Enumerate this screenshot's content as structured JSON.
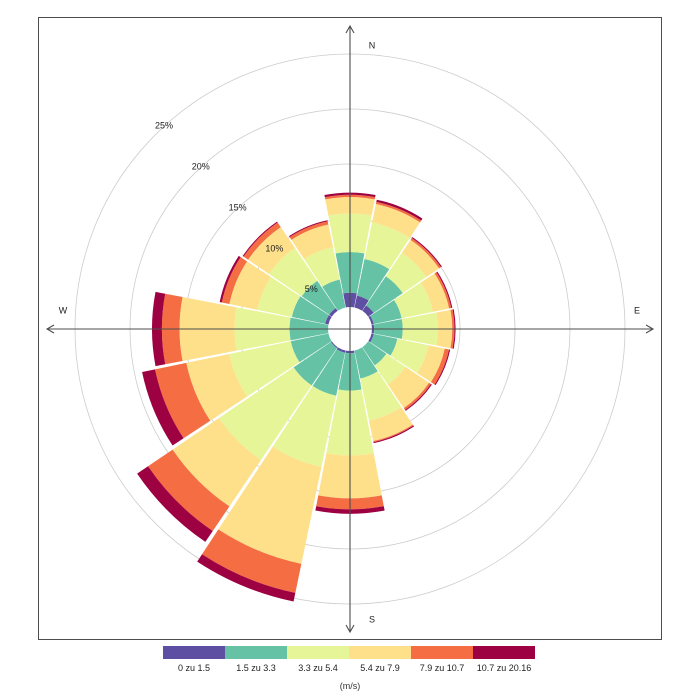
{
  "chart_data": {
    "type": "windrose",
    "directions": [
      "N",
      "NNE",
      "NE",
      "ENE",
      "E",
      "ESE",
      "SE",
      "SSE",
      "S",
      "SSW",
      "SW",
      "WSW",
      "W",
      "WNW",
      "NW",
      "NNW"
    ],
    "direction_labels": {
      "N": "N",
      "E": "E",
      "S": "S",
      "W": "W"
    },
    "bins": [
      {
        "name": "0 zu 1.5",
        "color": "#5E4FA2"
      },
      {
        "name": "1.5 zu 3.3",
        "color": "#66C2A5"
      },
      {
        "name": "3.3 zu 5.4",
        "color": "#E6F598"
      },
      {
        "name": "5.4 zu 7.9",
        "color": "#FEE08B"
      },
      {
        "name": "7.9 zu 10.7",
        "color": "#F46D43"
      },
      {
        "name": "10.7 zu 20.16",
        "color": "#9E0142"
      }
    ],
    "cumulative_percent": [
      [
        3.3,
        7.0,
        10.5,
        12.0,
        12.2,
        12.4
      ],
      [
        3.1,
        6.5,
        9.9,
        11.6,
        11.8,
        12.0
      ],
      [
        2.6,
        5.8,
        8.4,
        9.8,
        10.0,
        10.1
      ],
      [
        2.2,
        4.8,
        7.7,
        9.2,
        9.4,
        9.5
      ],
      [
        2.2,
        4.8,
        8.0,
        9.3,
        9.5,
        9.6
      ],
      [
        2.2,
        4.4,
        7.3,
        8.8,
        9.2,
        9.3
      ],
      [
        2.0,
        4.0,
        6.1,
        8.7,
        8.9,
        9.0
      ],
      [
        2.0,
        4.6,
        8.5,
        10.4,
        10.5,
        10.6
      ],
      [
        2.2,
        5.6,
        11.5,
        15.4,
        16.4,
        16.8
      ],
      [
        2.2,
        6.2,
        12.8,
        21.8,
        24.5,
        25.3
      ],
      [
        2.1,
        6.2,
        14.4,
        19.5,
        22.2,
        23.4
      ],
      [
        1.8,
        5.5,
        11.2,
        15.2,
        18.1,
        19.3
      ],
      [
        2.0,
        5.5,
        10.5,
        15.5,
        17.1,
        18.0
      ],
      [
        2.3,
        5.4,
        8.6,
        11.2,
        11.9,
        12.1
      ],
      [
        2.3,
        5.3,
        8.9,
        11.2,
        11.7,
        11.8
      ],
      [
        2.0,
        4.6,
        7.6,
        9.7,
        10.0,
        10.1
      ]
    ],
    "calm_radius_percent": 2.0,
    "rings_percent": [
      5,
      10,
      15,
      20,
      25
    ],
    "ring_labels": [
      "5%",
      "10%",
      "15%",
      "20%",
      "25%"
    ],
    "ring_scale": {
      "max_percent": 25,
      "max_radius_px": 275
    },
    "legend_title": "(m/s)"
  },
  "colors": {
    "grid": "#cccccc",
    "axis": "#4d4d4d",
    "frame": "#4d4d4d"
  }
}
